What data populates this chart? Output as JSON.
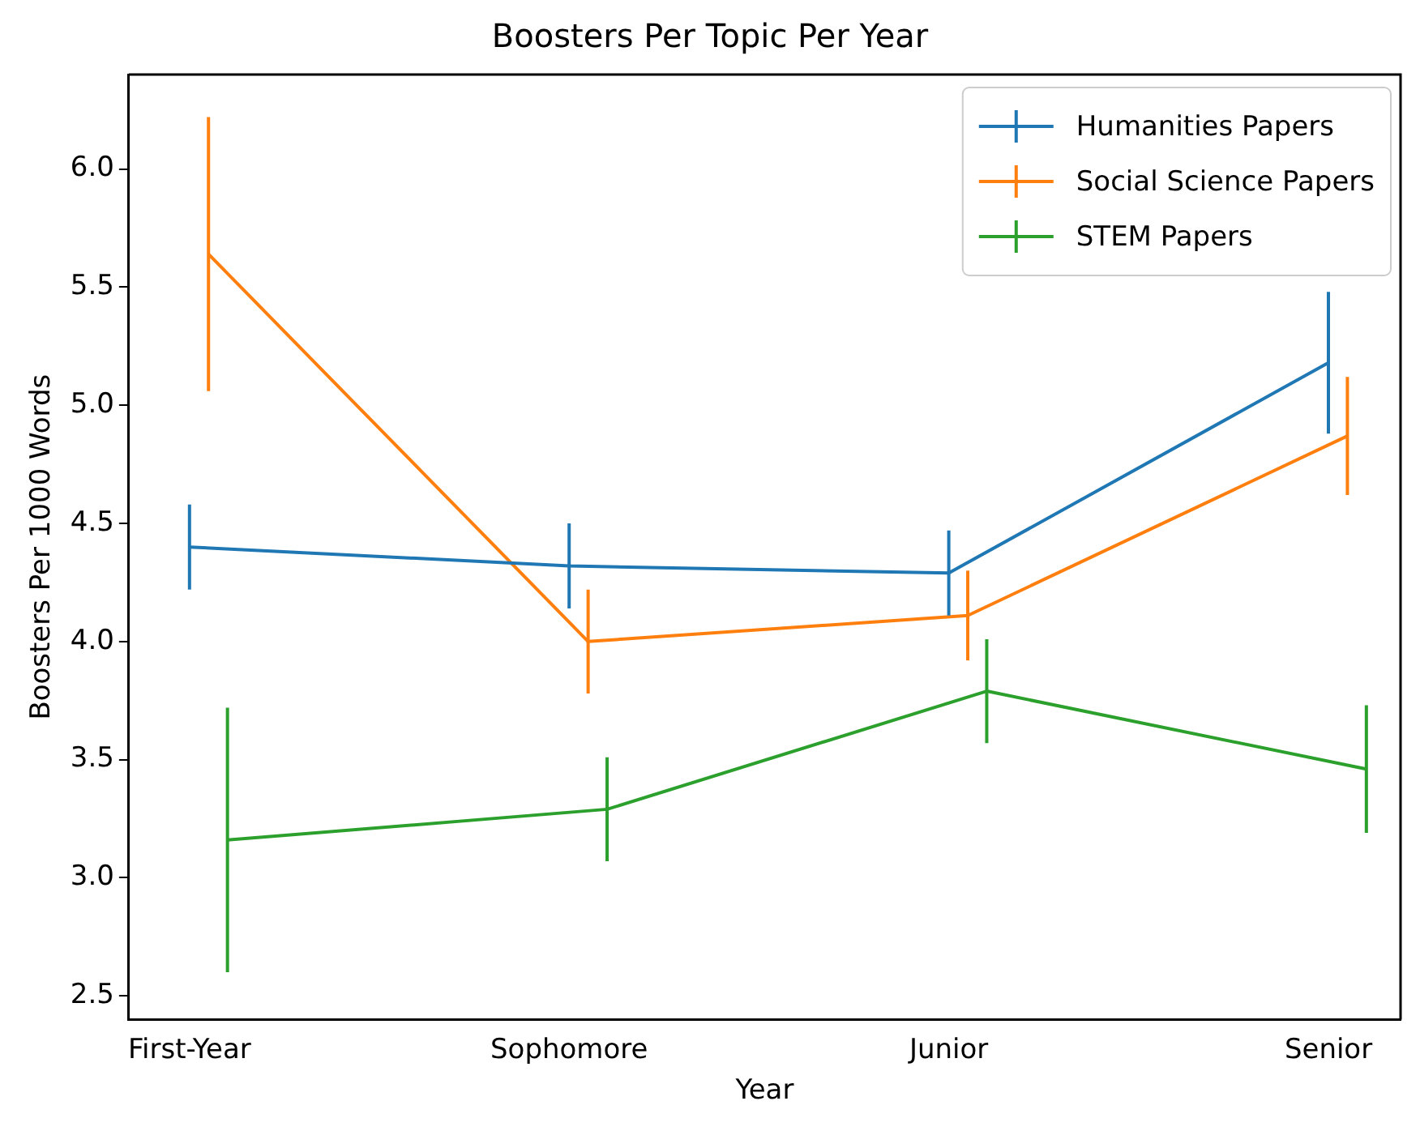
{
  "chart_data": {
    "type": "line",
    "title": "Boosters Per Topic Per Year",
    "xlabel": "Year",
    "ylabel": "Boosters Per 1000 Words",
    "categories": [
      "First-Year",
      "Sophomore",
      "Junior",
      "Senior"
    ],
    "series": [
      {
        "name": "Humanities Papers",
        "color": "#1f77b4",
        "values": [
          4.4,
          4.32,
          4.29,
          5.18
        ],
        "errors": [
          0.18,
          0.18,
          0.18,
          0.3
        ]
      },
      {
        "name": "Social Science Papers",
        "color": "#ff7f0e",
        "values": [
          5.64,
          4.0,
          4.11,
          4.87
        ],
        "errors": [
          0.58,
          0.22,
          0.19,
          0.25
        ]
      },
      {
        "name": "STEM Papers",
        "color": "#2ca02c",
        "values": [
          3.16,
          3.29,
          3.79,
          3.46
        ],
        "errors": [
          0.56,
          0.22,
          0.22,
          0.27
        ]
      }
    ],
    "ylim": [
      2.4,
      6.4
    ],
    "yticks": [
      2.5,
      {
        "value": 3,
        "label": "3.0"
      },
      3.5,
      {
        "value": 4,
        "label": "4.0"
      },
      4.5,
      {
        "value": 5,
        "label": "5.0"
      },
      5.5,
      {
        "value": 6,
        "label": "6.0"
      }
    ],
    "grid": false,
    "legend": "top right",
    "marker": "none",
    "line_style": "solid"
  }
}
